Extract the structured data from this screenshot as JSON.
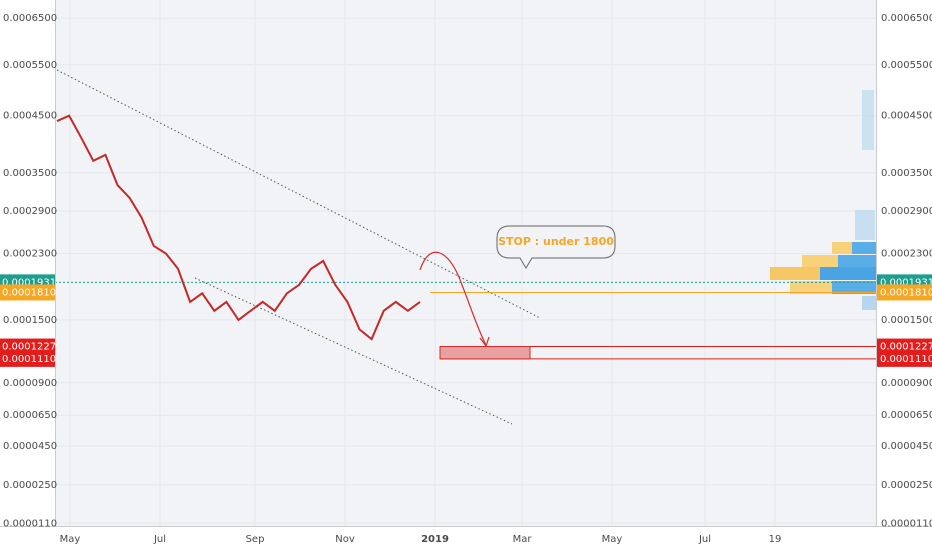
{
  "chart_data": {
    "type": "line",
    "yscale": "sqrt",
    "grid": true,
    "ylim": [
      1.05e-05,
      0.00068
    ],
    "yticks": [
      {
        "value": 0.00065,
        "label": "0.0006500"
      },
      {
        "value": 0.00055,
        "label": "0.0005500"
      },
      {
        "value": 0.00045,
        "label": "0.0004500"
      },
      {
        "value": 0.00035,
        "label": "0.0003500"
      },
      {
        "value": 0.00029,
        "label": "0.0002900"
      },
      {
        "value": 0.00023,
        "label": "0.0002300"
      },
      {
        "value": 0.00015,
        "label": "0.0001500"
      },
      {
        "value": 9e-05,
        "label": "0.0000900"
      },
      {
        "value": 6.5e-05,
        "label": "0.0000650"
      },
      {
        "value": 4.5e-05,
        "label": "0.0000450"
      },
      {
        "value": 2.5e-05,
        "label": "0.0000250"
      },
      {
        "value": 1.1e-05,
        "label": "0.0000110"
      }
    ],
    "x_labels": [
      "May",
      "Jul",
      "Sep",
      "Nov",
      "2019",
      "Mar",
      "May",
      "Jul",
      "19"
    ],
    "series": [
      {
        "color": "#c62828",
        "values": [
          0.00044,
          0.00045,
          0.00041,
          0.00037,
          0.00038,
          0.00033,
          0.00031,
          0.00028,
          0.00024,
          0.00023,
          0.00021,
          0.00017,
          0.00018,
          0.00016,
          0.00017,
          0.00015,
          0.00016,
          0.00017,
          0.00016,
          0.00018,
          0.00019,
          0.00021,
          0.00022,
          0.00019,
          0.00017,
          0.00014,
          0.00013,
          0.00016,
          0.00017,
          0.00016,
          0.00017
        ]
      }
    ],
    "markers": [
      {
        "value": 0.0001931,
        "label": "0.0001931",
        "color": "#1e9e8e"
      },
      {
        "value": 0.000181,
        "label": "0.0001810",
        "color": "#f5a623"
      },
      {
        "value": 0.0001227,
        "label": "0.0001227",
        "color": "#e31c1c"
      },
      {
        "value": 0.000111,
        "label": "0.0001110",
        "color": "#e31c1c"
      }
    ],
    "annotation": "STOP : under 1800"
  }
}
